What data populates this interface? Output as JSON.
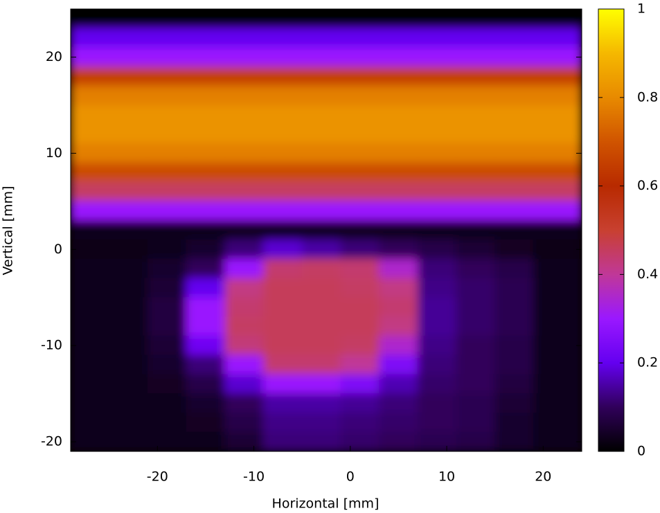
{
  "chart_data": {
    "type": "heatmap",
    "x_label": "Horizontal [mm]",
    "y_label": "Vertical [mm]",
    "xlim": [
      -29,
      24
    ],
    "ylim": [
      -21,
      25
    ],
    "xticks": [
      -20,
      -10,
      0,
      10,
      20
    ],
    "yticks": [
      -20,
      -10,
      0,
      10,
      20
    ],
    "x": [
      -27,
      -23,
      -19,
      -15,
      -11,
      -7,
      -3,
      1,
      5,
      9,
      13,
      17,
      21
    ],
    "y": [
      24,
      22,
      20,
      18,
      16,
      14,
      12,
      10,
      8,
      6,
      4,
      2,
      0,
      -2,
      -4,
      -6,
      -8,
      -10,
      -12,
      -14,
      -16,
      -18,
      -20
    ],
    "z": [
      [
        0,
        0,
        0,
        0,
        0,
        0,
        0,
        0,
        0,
        0,
        0,
        0,
        0
      ],
      [
        0.2,
        0.2,
        0.2,
        0.2,
        0.2,
        0.2,
        0.2,
        0.2,
        0.2,
        0.2,
        0.2,
        0.2,
        0.2
      ],
      [
        0.3,
        0.3,
        0.3,
        0.3,
        0.3,
        0.3,
        0.3,
        0.3,
        0.3,
        0.3,
        0.3,
        0.3,
        0.3
      ],
      [
        0.65,
        0.65,
        0.65,
        0.65,
        0.65,
        0.65,
        0.65,
        0.65,
        0.65,
        0.65,
        0.65,
        0.65,
        0.65
      ],
      [
        0.78,
        0.78,
        0.78,
        0.78,
        0.78,
        0.78,
        0.78,
        0.78,
        0.78,
        0.78,
        0.78,
        0.78,
        0.78
      ],
      [
        0.82,
        0.82,
        0.82,
        0.82,
        0.82,
        0.82,
        0.82,
        0.82,
        0.82,
        0.82,
        0.82,
        0.82,
        0.82
      ],
      [
        0.82,
        0.82,
        0.82,
        0.82,
        0.82,
        0.82,
        0.82,
        0.82,
        0.82,
        0.82,
        0.82,
        0.82,
        0.82
      ],
      [
        0.78,
        0.78,
        0.78,
        0.78,
        0.78,
        0.78,
        0.78,
        0.78,
        0.78,
        0.78,
        0.78,
        0.78,
        0.78
      ],
      [
        0.68,
        0.68,
        0.68,
        0.68,
        0.68,
        0.68,
        0.68,
        0.68,
        0.68,
        0.68,
        0.68,
        0.68,
        0.68
      ],
      [
        0.45,
        0.45,
        0.45,
        0.45,
        0.45,
        0.45,
        0.45,
        0.45,
        0.45,
        0.45,
        0.45,
        0.45,
        0.45
      ],
      [
        0.3,
        0.3,
        0.3,
        0.3,
        0.3,
        0.3,
        0.3,
        0.3,
        0.3,
        0.3,
        0.3,
        0.3,
        0.3
      ],
      [
        0.03,
        0.03,
        0.03,
        0.03,
        0.03,
        0.03,
        0.03,
        0.03,
        0.03,
        0.03,
        0.03,
        0.03,
        0.03
      ],
      [
        0.02,
        0.02,
        0.03,
        0.05,
        0.12,
        0.18,
        0.15,
        0.12,
        0.1,
        0.08,
        0.06,
        0.04,
        0.02
      ],
      [
        0.03,
        0.03,
        0.05,
        0.1,
        0.3,
        0.44,
        0.45,
        0.44,
        0.35,
        0.12,
        0.1,
        0.08,
        0.03
      ],
      [
        0.03,
        0.03,
        0.06,
        0.2,
        0.42,
        0.46,
        0.46,
        0.45,
        0.42,
        0.13,
        0.11,
        0.09,
        0.03
      ],
      [
        0.03,
        0.03,
        0.07,
        0.3,
        0.44,
        0.46,
        0.46,
        0.46,
        0.44,
        0.14,
        0.11,
        0.09,
        0.03
      ],
      [
        0.03,
        0.03,
        0.07,
        0.3,
        0.45,
        0.46,
        0.46,
        0.46,
        0.42,
        0.14,
        0.11,
        0.09,
        0.03
      ],
      [
        0.03,
        0.03,
        0.06,
        0.22,
        0.43,
        0.46,
        0.46,
        0.45,
        0.35,
        0.13,
        0.1,
        0.08,
        0.03
      ],
      [
        0.03,
        0.03,
        0.05,
        0.12,
        0.3,
        0.44,
        0.44,
        0.4,
        0.25,
        0.12,
        0.1,
        0.08,
        0.03
      ],
      [
        0.03,
        0.03,
        0.04,
        0.08,
        0.18,
        0.3,
        0.3,
        0.25,
        0.16,
        0.11,
        0.1,
        0.07,
        0.03
      ],
      [
        0.03,
        0.03,
        0.03,
        0.05,
        0.1,
        0.15,
        0.15,
        0.14,
        0.12,
        0.1,
        0.09,
        0.06,
        0.03
      ],
      [
        0.03,
        0.03,
        0.03,
        0.04,
        0.08,
        0.13,
        0.13,
        0.12,
        0.11,
        0.1,
        0.09,
        0.05,
        0.03
      ],
      [
        0.03,
        0.03,
        0.03,
        0.03,
        0.06,
        0.12,
        0.12,
        0.11,
        0.1,
        0.09,
        0.08,
        0.05,
        0.03
      ]
    ],
    "clim": [
      0,
      1
    ],
    "cticks": [
      0,
      0.2,
      0.4,
      0.6,
      0.8,
      1
    ],
    "colormap": [
      "#000000",
      "#30005a",
      "#6400f0",
      "#9a18ff",
      "#c03898",
      "#c84030",
      "#b82a00",
      "#d05400",
      "#e88a00",
      "#f5b800",
      "#ffff00"
    ]
  }
}
